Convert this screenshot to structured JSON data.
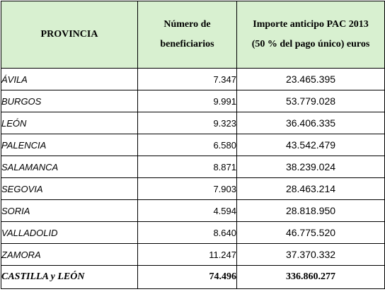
{
  "headers": {
    "provincia": "PROVINCIA",
    "beneficiarios_line1": "Número de",
    "beneficiarios_line2": "beneficiarios",
    "importe_line1": "Importe anticipo PAC 2013",
    "importe_line2": "(50 % del pago único) euros"
  },
  "rows": [
    {
      "provincia": "ÁVILA",
      "beneficiarios": "7.347",
      "importe": "23.465.395"
    },
    {
      "provincia": "BURGOS",
      "beneficiarios": "9.991",
      "importe": "53.779.028"
    },
    {
      "provincia": "LEÓN",
      "beneficiarios": "9.323",
      "importe": "36.406.335"
    },
    {
      "provincia": "PALENCIA",
      "beneficiarios": "6.580",
      "importe": "43.542.479"
    },
    {
      "provincia": "SALAMANCA",
      "beneficiarios": "8.871",
      "importe": "38.239.024"
    },
    {
      "provincia": "SEGOVIA",
      "beneficiarios": "7.903",
      "importe": "28.463.214"
    },
    {
      "provincia": "SORIA",
      "beneficiarios": "4.594",
      "importe": "28.818.950"
    },
    {
      "provincia": "VALLADOLID",
      "beneficiarios": "8.640",
      "importe": "46.775.520"
    },
    {
      "provincia": "ZAMORA",
      "beneficiarios": "11.247",
      "importe": "37.370.332"
    }
  ],
  "total": {
    "provincia": "CASTILLA y LEÓN",
    "beneficiarios": "74.496",
    "importe": "336.860.277"
  },
  "colors": {
    "header_bg": "#d8f0d0",
    "border": "#000000"
  }
}
